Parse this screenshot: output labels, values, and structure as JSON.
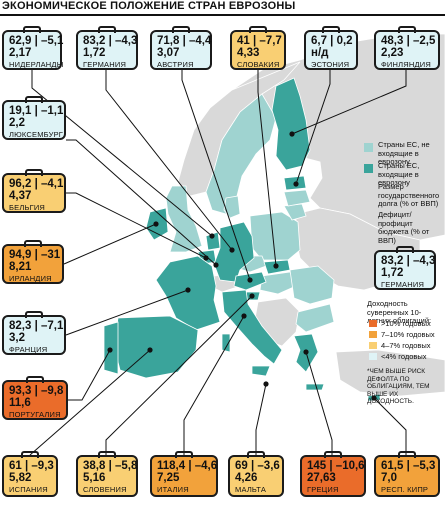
{
  "title": "ЭКОНОМИЧЕСКОЕ ПОЛОЖЕНИЕ СТРАН ЕВРОЗОНЫ",
  "colors": {
    "eurozone": "#3aa49b",
    "eu_non_euro": "#9fd3d0",
    "non_eu": "#d9d9d9",
    "sea": "#ffffff",
    "yield_over_10": "#ea6c2a",
    "yield_7_10": "#f2a23b",
    "yield_4_7": "#f9cf73",
    "yield_under_4": "#dff3f6"
  },
  "legend": {
    "eu_non_euro": "Страны ЕС, не входящие в еврозону",
    "eurozone": "Страны ЕС, входящие в еврозону",
    "debt": "Размер государственного долга (% от ВВП)",
    "deficit": "Дефицит/профицит бюджета (% от ВВП)",
    "yield_title": "Доходность суверенных 10-летних облигаций:",
    "yield_over_10": ">10% годовых",
    "yield_7_10": "7–10% годовых",
    "yield_4_7": "4–7% годовых",
    "yield_under_4": "<4% годовых",
    "note": "*ЧЕМ ВЫШЕ РИСК ДЕФОЛТА ПО ОБЛИГАЦИЯМ, ТЕМ ВЫШЕ ИХ ДОХОДНОСТЬ."
  },
  "example_card": {
    "line1": "83,2 | –4,3",
    "line2": "1,72",
    "name": "ГЕРМАНИЯ"
  },
  "countries": [
    {
      "name": "НИДЕРЛАНДЫ",
      "line1": "62,9 | –5,1",
      "line2": "2,17",
      "band": "<4%"
    },
    {
      "name": "ГЕРМАНИЯ",
      "line1": "83,2 | –4,3",
      "line2": "1,72",
      "band": "<4%"
    },
    {
      "name": "АВСТРИЯ",
      "line1": "71,8 | –4,4",
      "line2": "3,07",
      "band": "<4%"
    },
    {
      "name": "СЛОВАКИЯ",
      "line1": "41 | –7,7",
      "line2": "4,33",
      "band": "4–7%"
    },
    {
      "name": "ЭСТОНИЯ",
      "line1": "6,7 | 0,2",
      "line2": "н/д",
      "band": "<4%"
    },
    {
      "name": "ФИНЛЯНДИЯ",
      "line1": "48,3 | –2,5",
      "line2": "2,23",
      "band": "<4%"
    },
    {
      "name": "ЛЮКСЕМБУРГ",
      "line1": "19,1 | –1,1",
      "line2": "2,2",
      "band": "<4%"
    },
    {
      "name": "БЕЛЬГИЯ",
      "line1": "96,2 | –4,1",
      "line2": "4,37",
      "band": "4–7%"
    },
    {
      "name": "ИРЛАНДИЯ",
      "line1": "94,9 | –31",
      "line2": "8,21",
      "band": "7–10%"
    },
    {
      "name": "ФРАНЦИЯ",
      "line1": "82,3 | –7,1",
      "line2": "3,2",
      "band": "<4%"
    },
    {
      "name": "ПОРТУГАЛИЯ",
      "line1": "93,3 | –9,8",
      "line2": "11,6",
      "band": ">10%"
    },
    {
      "name": "ИСПАНИЯ",
      "line1": "61 | –9,3",
      "line2": "5,82",
      "band": "4–7%"
    },
    {
      "name": "СЛОВЕНИЯ",
      "line1": "38,8 | –5,8",
      "line2": "5,16",
      "band": "4–7%"
    },
    {
      "name": "ИТАЛИЯ",
      "line1": "118,4 | –4,6",
      "line2": "7,25",
      "band": "7–10%"
    },
    {
      "name": "МАЛЬТА",
      "line1": "69 | –3,6",
      "line2": "4,26",
      "band": "4–7%"
    },
    {
      "name": "ГРЕЦИЯ",
      "line1": "145 | –10,6",
      "line2": "27,63",
      "band": ">10%"
    },
    {
      "name": "РЕСП. КИПР",
      "line1": "61,5 | –5,3",
      "line2": "7,0",
      "band": "7–10%"
    }
  ]
}
